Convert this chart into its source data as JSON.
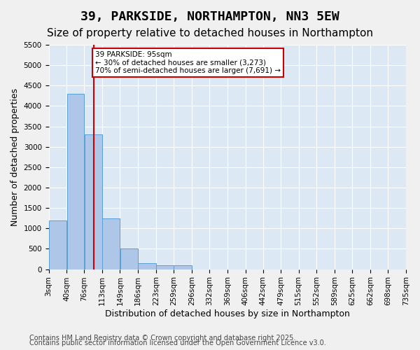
{
  "title": "39, PARKSIDE, NORTHAMPTON, NN3 5EW",
  "subtitle": "Size of property relative to detached houses in Northampton",
  "xlabel": "Distribution of detached houses by size in Northampton",
  "ylabel": "Number of detached properties",
  "bin_labels": [
    "3sqm",
    "40sqm",
    "76sqm",
    "113sqm",
    "149sqm",
    "186sqm",
    "223sqm",
    "259sqm",
    "296sqm",
    "332sqm",
    "369sqm",
    "406sqm",
    "442sqm",
    "479sqm",
    "515sqm",
    "552sqm",
    "589sqm",
    "625sqm",
    "662sqm",
    "698sqm",
    "735sqm"
  ],
  "bin_edges": [
    3,
    40,
    76,
    113,
    149,
    186,
    223,
    259,
    296,
    332,
    369,
    406,
    442,
    479,
    515,
    552,
    589,
    625,
    662,
    698,
    735
  ],
  "bar_heights": [
    1200,
    4300,
    3300,
    1250,
    500,
    150,
    100,
    100,
    0,
    0,
    0,
    0,
    0,
    0,
    0,
    0,
    0,
    0,
    0,
    0
  ],
  "bar_color": "#aec6e8",
  "bar_edge_color": "#5a9fd4",
  "property_size": 95,
  "vline_color": "#cc0000",
  "annotation_text": "39 PARKSIDE: 95sqm\n← 30% of detached houses are smaller (3,273)\n70% of semi-detached houses are larger (7,691) →",
  "annotation_box_color": "#ffffff",
  "annotation_box_edge": "#cc0000",
  "ylim": [
    0,
    5500
  ],
  "yticks": [
    0,
    500,
    1000,
    1500,
    2000,
    2500,
    3000,
    3500,
    4000,
    4500,
    5000,
    5500
  ],
  "background_color": "#dce9f5",
  "fig_background_color": "#f0f0f0",
  "footer_line1": "Contains HM Land Registry data © Crown copyright and database right 2025.",
  "footer_line2": "Contains public sector information licensed under the Open Government Licence v3.0.",
  "title_fontsize": 13,
  "subtitle_fontsize": 11,
  "tick_fontsize": 7.5,
  "axis_label_fontsize": 9,
  "footer_fontsize": 7
}
